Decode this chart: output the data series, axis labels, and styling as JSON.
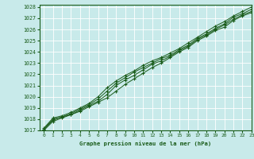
{
  "title": "Graphe pression niveau de la mer (hPa)",
  "bg_color": "#c8eaea",
  "grid_color": "#ffffff",
  "line_color": "#1a5c1a",
  "text_color": "#1a5c1a",
  "xlim": [
    -0.5,
    23
  ],
  "ylim": [
    1017,
    1028.2
  ],
  "xticks": [
    0,
    1,
    2,
    3,
    4,
    5,
    6,
    7,
    8,
    9,
    10,
    11,
    12,
    13,
    14,
    15,
    16,
    17,
    18,
    19,
    20,
    21,
    22,
    23
  ],
  "yticks": [
    1017,
    1018,
    1019,
    1020,
    1021,
    1022,
    1023,
    1024,
    1025,
    1026,
    1027,
    1028
  ],
  "series": [
    [
      1017.0,
      1017.8,
      1018.1,
      1018.4,
      1018.7,
      1019.1,
      1019.5,
      1019.9,
      1020.5,
      1021.1,
      1021.6,
      1022.1,
      1022.6,
      1023.0,
      1023.5,
      1024.0,
      1024.4,
      1025.0,
      1025.4,
      1025.9,
      1026.2,
      1026.8,
      1027.2,
      1027.5
    ],
    [
      1017.1,
      1017.9,
      1018.2,
      1018.4,
      1018.8,
      1019.2,
      1019.6,
      1020.2,
      1021.0,
      1021.5,
      1021.9,
      1022.4,
      1022.9,
      1023.2,
      1023.6,
      1024.1,
      1024.5,
      1025.1,
      1025.5,
      1026.0,
      1026.4,
      1026.9,
      1027.3,
      1027.6
    ],
    [
      1017.1,
      1018.0,
      1018.2,
      1018.5,
      1018.9,
      1019.3,
      1019.8,
      1020.5,
      1021.2,
      1021.7,
      1022.2,
      1022.6,
      1023.0,
      1023.4,
      1023.7,
      1024.2,
      1024.6,
      1025.2,
      1025.6,
      1026.1,
      1026.5,
      1027.1,
      1027.4,
      1027.8
    ],
    [
      1017.2,
      1018.1,
      1018.3,
      1018.6,
      1019.0,
      1019.4,
      1020.0,
      1020.8,
      1021.4,
      1021.9,
      1022.3,
      1022.8,
      1023.2,
      1023.5,
      1023.9,
      1024.3,
      1024.8,
      1025.3,
      1025.8,
      1026.3,
      1026.7,
      1027.2,
      1027.6,
      1028.0
    ]
  ]
}
